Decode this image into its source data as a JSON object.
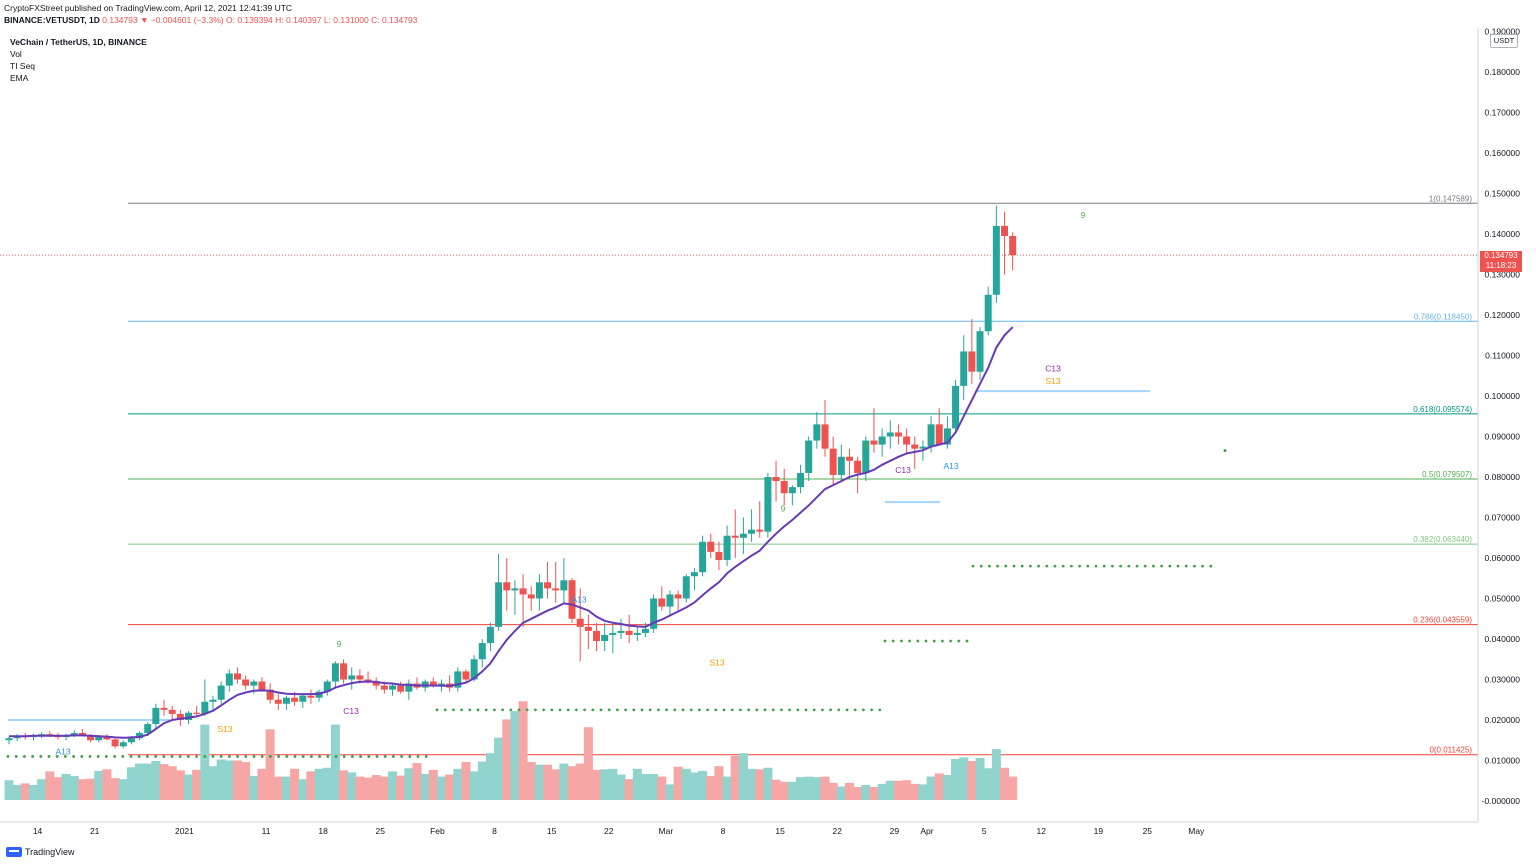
{
  "header": {
    "publish_line": "CryptoFXStreet published on TradingView.com, April 12, 2021 12:41:39 UTC",
    "symbol": "BINANCE:VETUSDT, 1D",
    "change": "0.134793 ▼ −0.004601 (−3.3%)",
    "ohlc": "O: 0.139394 H: 0.140397 L: 0.131000 C: 0.134793"
  },
  "legend": {
    "title": "VeChain / TetherUS, 1D, BINANCE",
    "items": [
      "Vol",
      "TI Seq",
      "EMA"
    ]
  },
  "price_axis": {
    "unit": "USDT",
    "last_price": "0.134793",
    "countdown": "11:18:23"
  },
  "branding": {
    "name": "TradingView"
  },
  "colors": {
    "up": "#26a69a",
    "down": "#ef5350",
    "ema": "#673ab7",
    "vol_up": "#91d3cd",
    "vol_down": "#f5a6a5"
  },
  "chart_data": {
    "type": "candlestick",
    "title": "VeChain / TetherUS, 1D, BINANCE",
    "xlabel": "",
    "ylabel": "USDT",
    "ylim": [
      -0.005,
      0.19
    ],
    "y_ticks": [
      "0.190000",
      "0.180000",
      "0.170000",
      "0.160000",
      "0.150000",
      "0.140000",
      "0.130000",
      "0.120000",
      "0.110000",
      "0.100000",
      "0.090000",
      "0.080000",
      "0.070000",
      "0.060000",
      "0.050000",
      "0.040000",
      "0.030000",
      "0.020000",
      "0.010000",
      "-0.000000"
    ],
    "x_ticks": [
      {
        "label": "14",
        "day": 0
      },
      {
        "label": "21",
        "day": 7
      },
      {
        "label": "2021",
        "day": 18
      },
      {
        "label": "11",
        "day": 28
      },
      {
        "label": "18",
        "day": 35
      },
      {
        "label": "25",
        "day": 42
      },
      {
        "label": "Feb",
        "day": 49
      },
      {
        "label": "8",
        "day": 56
      },
      {
        "label": "15",
        "day": 63
      },
      {
        "label": "22",
        "day": 70
      },
      {
        "label": "Mar",
        "day": 77
      },
      {
        "label": "8",
        "day": 84
      },
      {
        "label": "15",
        "day": 91
      },
      {
        "label": "22",
        "day": 98
      },
      {
        "label": "29",
        "day": 105
      },
      {
        "label": "Apr",
        "day": 109
      },
      {
        "label": "5",
        "day": 116
      },
      {
        "label": "12",
        "day": 123
      },
      {
        "label": "19",
        "day": 130
      },
      {
        "label": "25",
        "day": 136
      },
      {
        "label": "May",
        "day": 142
      }
    ],
    "candles": [
      [
        0.015,
        0.016,
        0.014,
        0.0155
      ],
      [
        0.0155,
        0.0165,
        0.0148,
        0.016
      ],
      [
        0.016,
        0.0168,
        0.0152,
        0.0158
      ],
      [
        0.0158,
        0.0166,
        0.015,
        0.0162
      ],
      [
        0.0162,
        0.017,
        0.0155,
        0.0165
      ],
      [
        0.0165,
        0.0172,
        0.0158,
        0.016
      ],
      [
        0.016,
        0.0168,
        0.0152,
        0.0158
      ],
      [
        0.0158,
        0.0166,
        0.015,
        0.0163
      ],
      [
        0.0163,
        0.0175,
        0.0158,
        0.0168
      ],
      [
        0.0168,
        0.0178,
        0.016,
        0.016
      ],
      [
        0.016,
        0.0165,
        0.0145,
        0.015
      ],
      [
        0.015,
        0.0162,
        0.0145,
        0.0158
      ],
      [
        0.0158,
        0.0165,
        0.015,
        0.0152
      ],
      [
        0.0152,
        0.0158,
        0.013,
        0.0135
      ],
      [
        0.0135,
        0.015,
        0.013,
        0.0145
      ],
      [
        0.0145,
        0.016,
        0.014,
        0.0155
      ],
      [
        0.0155,
        0.0172,
        0.015,
        0.0168
      ],
      [
        0.0168,
        0.0195,
        0.016,
        0.019
      ],
      [
        0.019,
        0.024,
        0.018,
        0.023
      ],
      [
        0.023,
        0.025,
        0.021,
        0.0225
      ],
      [
        0.0225,
        0.0235,
        0.02,
        0.0215
      ],
      [
        0.0215,
        0.0225,
        0.0185,
        0.02
      ],
      [
        0.02,
        0.0222,
        0.019,
        0.0218
      ],
      [
        0.0218,
        0.0235,
        0.021,
        0.0215
      ],
      [
        0.0215,
        0.03,
        0.021,
        0.0245
      ],
      [
        0.0245,
        0.026,
        0.022,
        0.025
      ],
      [
        0.025,
        0.0295,
        0.024,
        0.0285
      ],
      [
        0.0285,
        0.0325,
        0.027,
        0.0315
      ],
      [
        0.0315,
        0.033,
        0.029,
        0.03
      ],
      [
        0.03,
        0.031,
        0.0275,
        0.0285
      ],
      [
        0.0285,
        0.03,
        0.0265,
        0.0295
      ],
      [
        0.0295,
        0.0305,
        0.027,
        0.0275
      ],
      [
        0.0275,
        0.029,
        0.024,
        0.025
      ],
      [
        0.025,
        0.0265,
        0.0225,
        0.024
      ],
      [
        0.024,
        0.026,
        0.0225,
        0.0255
      ],
      [
        0.0255,
        0.027,
        0.0235,
        0.0245
      ],
      [
        0.0245,
        0.0265,
        0.023,
        0.026
      ],
      [
        0.026,
        0.0275,
        0.024,
        0.0255
      ],
      [
        0.0255,
        0.0275,
        0.0245,
        0.027
      ],
      [
        0.027,
        0.03,
        0.026,
        0.0295
      ],
      [
        0.0295,
        0.0345,
        0.028,
        0.034
      ],
      [
        0.034,
        0.035,
        0.029,
        0.03
      ],
      [
        0.03,
        0.033,
        0.0275,
        0.031
      ],
      [
        0.031,
        0.0325,
        0.029,
        0.03
      ],
      [
        0.03,
        0.032,
        0.029,
        0.0295
      ],
      [
        0.0295,
        0.0305,
        0.0275,
        0.0285
      ],
      [
        0.0285,
        0.0295,
        0.0265,
        0.0275
      ],
      [
        0.0275,
        0.029,
        0.026,
        0.0285
      ],
      [
        0.0285,
        0.0295,
        0.0265,
        0.027
      ],
      [
        0.027,
        0.03,
        0.025,
        0.029
      ],
      [
        0.029,
        0.0305,
        0.0275,
        0.028
      ],
      [
        0.028,
        0.03,
        0.027,
        0.0295
      ],
      [
        0.0295,
        0.0305,
        0.028,
        0.0285
      ],
      [
        0.0285,
        0.03,
        0.027,
        0.029
      ],
      [
        0.029,
        0.031,
        0.027,
        0.028
      ],
      [
        0.028,
        0.033,
        0.027,
        0.032
      ],
      [
        0.032,
        0.0325,
        0.029,
        0.03
      ],
      [
        0.03,
        0.036,
        0.0295,
        0.035
      ],
      [
        0.035,
        0.04,
        0.033,
        0.039
      ],
      [
        0.039,
        0.044,
        0.037,
        0.043
      ],
      [
        0.043,
        0.061,
        0.042,
        0.054
      ],
      [
        0.054,
        0.06,
        0.047,
        0.052
      ],
      [
        0.052,
        0.0545,
        0.046,
        0.0525
      ],
      [
        0.0525,
        0.056,
        0.043,
        0.051
      ],
      [
        0.051,
        0.053,
        0.047,
        0.05
      ],
      [
        0.05,
        0.056,
        0.047,
        0.054
      ],
      [
        0.054,
        0.059,
        0.05,
        0.0525
      ],
      [
        0.0525,
        0.059,
        0.049,
        0.052
      ],
      [
        0.052,
        0.06,
        0.049,
        0.0545
      ],
      [
        0.0545,
        0.055,
        0.044,
        0.045
      ],
      [
        0.045,
        0.0525,
        0.0345,
        0.043
      ],
      [
        0.043,
        0.046,
        0.0375,
        0.042
      ],
      [
        0.042,
        0.044,
        0.037,
        0.0395
      ],
      [
        0.0395,
        0.044,
        0.037,
        0.041
      ],
      [
        0.041,
        0.044,
        0.0365,
        0.0415
      ],
      [
        0.0415,
        0.045,
        0.04,
        0.042
      ],
      [
        0.042,
        0.046,
        0.039,
        0.041
      ],
      [
        0.041,
        0.043,
        0.0395,
        0.0415
      ],
      [
        0.0415,
        0.044,
        0.0405,
        0.0425
      ],
      [
        0.0425,
        0.051,
        0.0415,
        0.05
      ],
      [
        0.05,
        0.053,
        0.047,
        0.048
      ],
      [
        0.048,
        0.052,
        0.046,
        0.051
      ],
      [
        0.051,
        0.052,
        0.047,
        0.05
      ],
      [
        0.05,
        0.056,
        0.049,
        0.0555
      ],
      [
        0.0555,
        0.0575,
        0.052,
        0.0565
      ],
      [
        0.0565,
        0.0655,
        0.0555,
        0.064
      ],
      [
        0.064,
        0.066,
        0.06,
        0.0615
      ],
      [
        0.0615,
        0.064,
        0.057,
        0.0595
      ],
      [
        0.0595,
        0.068,
        0.058,
        0.0655
      ],
      [
        0.0655,
        0.072,
        0.06,
        0.065
      ],
      [
        0.065,
        0.07,
        0.061,
        0.066
      ],
      [
        0.066,
        0.072,
        0.064,
        0.067
      ],
      [
        0.067,
        0.074,
        0.065,
        0.0665
      ],
      [
        0.0665,
        0.081,
        0.065,
        0.08
      ],
      [
        0.08,
        0.084,
        0.074,
        0.079
      ],
      [
        0.079,
        0.082,
        0.073,
        0.076
      ],
      [
        0.076,
        0.078,
        0.073,
        0.0775
      ],
      [
        0.0775,
        0.083,
        0.076,
        0.081
      ],
      [
        0.081,
        0.09,
        0.079,
        0.089
      ],
      [
        0.089,
        0.096,
        0.087,
        0.093
      ],
      [
        0.093,
        0.099,
        0.085,
        0.087
      ],
      [
        0.087,
        0.09,
        0.078,
        0.0805
      ],
      [
        0.0805,
        0.088,
        0.079,
        0.085
      ],
      [
        0.085,
        0.087,
        0.08,
        0.084
      ],
      [
        0.084,
        0.085,
        0.076,
        0.081
      ],
      [
        0.081,
        0.09,
        0.079,
        0.089
      ],
      [
        0.089,
        0.097,
        0.086,
        0.088
      ],
      [
        0.088,
        0.092,
        0.085,
        0.09
      ],
      [
        0.09,
        0.094,
        0.087,
        0.091
      ],
      [
        0.091,
        0.093,
        0.088,
        0.09
      ],
      [
        0.09,
        0.092,
        0.086,
        0.088
      ],
      [
        0.088,
        0.09,
        0.082,
        0.087
      ],
      [
        0.087,
        0.089,
        0.084,
        0.0875
      ],
      [
        0.0875,
        0.095,
        0.086,
        0.093
      ],
      [
        0.093,
        0.097,
        0.088,
        0.088
      ],
      [
        0.088,
        0.095,
        0.087,
        0.092
      ],
      [
        0.092,
        0.104,
        0.091,
        0.1025
      ],
      [
        0.1025,
        0.115,
        0.099,
        0.111
      ],
      [
        0.111,
        0.119,
        0.103,
        0.106
      ],
      [
        0.106,
        0.117,
        0.104,
        0.116
      ],
      [
        0.116,
        0.127,
        0.115,
        0.125
      ],
      [
        0.125,
        0.147,
        0.123,
        0.142
      ],
      [
        0.142,
        0.1455,
        0.13,
        0.1395
      ],
      [
        0.1395,
        0.1404,
        0.131,
        0.1348
      ]
    ],
    "volume_rel": [
      0.38,
      0.29,
      0.32,
      0.29,
      0.4,
      0.55,
      0.44,
      0.5,
      0.46,
      0.4,
      0.41,
      0.56,
      0.59,
      0.42,
      0.4,
      0.63,
      0.7,
      0.7,
      0.75,
      0.69,
      0.65,
      0.57,
      0.49,
      0.58,
      1.45,
      0.65,
      0.78,
      0.76,
      0.76,
      0.73,
      0.46,
      0.6,
      1.36,
      0.45,
      0.45,
      0.6,
      0.4,
      0.55,
      0.6,
      0.62,
      1.45,
      0.57,
      0.53,
      0.45,
      0.43,
      0.48,
      0.45,
      0.55,
      0.47,
      0.61,
      0.71,
      0.5,
      0.58,
      0.45,
      0.49,
      0.6,
      0.73,
      0.55,
      0.74,
      0.9,
      1.2,
      1.55,
      1.71,
      1.9,
      0.73,
      0.68,
      0.68,
      0.59,
      0.7,
      0.65,
      0.7,
      1.4,
      0.58,
      0.59,
      0.6,
      0.49,
      0.4,
      0.6,
      0.5,
      0.5,
      0.45,
      0.3,
      0.64,
      0.6,
      0.53,
      0.56,
      0.46,
      0.65,
      0.45,
      0.85,
      0.9,
      0.6,
      0.59,
      0.62,
      0.39,
      0.35,
      0.35,
      0.44,
      0.45,
      0.44,
      0.45,
      0.33,
      0.26,
      0.33,
      0.25,
      0.29,
      0.25,
      0.31,
      0.37,
      0.37,
      0.38,
      0.31,
      0.3,
      0.45,
      0.51,
      0.48,
      0.79,
      0.82,
      0.75,
      0.81,
      0.61,
      0.98,
      0.62,
      0.45
    ],
    "ema": [
      0.016,
      0.016,
      0.016,
      0.0161,
      0.0161,
      0.0161,
      0.0161,
      0.0161,
      0.0162,
      0.0162,
      0.0161,
      0.016,
      0.0159,
      0.0157,
      0.0156,
      0.0157,
      0.0158,
      0.0164,
      0.0178,
      0.0192,
      0.02,
      0.0203,
      0.0206,
      0.0209,
      0.0215,
      0.0223,
      0.0236,
      0.025,
      0.0262,
      0.0268,
      0.0272,
      0.0273,
      0.0272,
      0.0268,
      0.0265,
      0.0264,
      0.0264,
      0.0264,
      0.0265,
      0.027,
      0.028,
      0.0286,
      0.0291,
      0.0294,
      0.0295,
      0.0294,
      0.0291,
      0.029,
      0.0287,
      0.0287,
      0.0285,
      0.0286,
      0.0285,
      0.0285,
      0.0284,
      0.0288,
      0.0292,
      0.0303,
      0.032,
      0.034,
      0.037,
      0.0398,
      0.042,
      0.044,
      0.045,
      0.046,
      0.047,
      0.0478,
      0.0488,
      0.0485,
      0.0478,
      0.047,
      0.0455,
      0.0445,
      0.044,
      0.0437,
      0.0433,
      0.0431,
      0.043,
      0.044,
      0.0448,
      0.0458,
      0.0468,
      0.0478,
      0.049,
      0.0508,
      0.0525,
      0.054,
      0.0562,
      0.0578,
      0.0592,
      0.0606,
      0.0618,
      0.064,
      0.066,
      0.0678,
      0.0694,
      0.0712,
      0.073,
      0.075,
      0.077,
      0.078,
      0.079,
      0.08,
      0.0806,
      0.081,
      0.0818,
      0.083,
      0.084,
      0.085,
      0.0858,
      0.0862,
      0.0866,
      0.0875,
      0.088,
      0.0885,
      0.091,
      0.095,
      0.099,
      0.103,
      0.107,
      0.112,
      0.115,
      0.117
    ],
    "fib_levels": [
      {
        "label": "1(0.147589)",
        "value": 0.147589,
        "color": "#787b86"
      },
      {
        "label": "0.786(0.118450)",
        "value": 0.11845,
        "color": "#64b5f6"
      },
      {
        "label": "0.618(0.095574)",
        "value": 0.095574,
        "color": "#009688"
      },
      {
        "label": "0.5(0.079507)",
        "value": 0.079507,
        "color": "#4caf50"
      },
      {
        "label": "0.382(0.063440)",
        "value": 0.06344,
        "color": "#81c784"
      },
      {
        "label": "0.236(0.043559)",
        "value": 0.043559,
        "color": "#f44336"
      },
      {
        "label": "0(0.011425)",
        "value": 0.011425,
        "color": "#f44336"
      }
    ],
    "last_price": 0.134793,
    "td_labels": [
      {
        "text": "A13",
        "day": 9,
        "price": 0.0115,
        "color": "#2196f3"
      },
      {
        "text": "S13",
        "day": 36,
        "price": 0.017,
        "color": "#ff9800"
      },
      {
        "text": "C13",
        "day": 57,
        "price": 0.0215,
        "color": "#9c27b0"
      },
      {
        "text": "A13",
        "day": 95,
        "price": 0.049,
        "color": "#2196f3"
      },
      {
        "text": "S13",
        "day": 118,
        "price": 0.0335,
        "color": "#ff9800"
      },
      {
        "text": "C13",
        "day": 149,
        "price": 0.081,
        "color": "#9c27b0"
      },
      {
        "text": "A13",
        "day": 157,
        "price": 0.082,
        "color": "#2196f3"
      },
      {
        "text": "C13",
        "day": 174,
        "price": 0.106,
        "color": "#9c27b0"
      },
      {
        "text": "S13",
        "day": 174,
        "price": 0.103,
        "color": "#ff9800"
      },
      {
        "text": "9",
        "day": 55,
        "price": 0.038,
        "color": "#4caf50"
      },
      {
        "text": "9",
        "day": 129,
        "price": 0.0715,
        "color": "#4caf50"
      },
      {
        "text": "9",
        "day": 143,
        "price": 0.087,
        "color": "#4caf50"
      },
      {
        "text": "9",
        "day": 179,
        "price": 0.144,
        "color": "#4caf50"
      }
    ]
  }
}
